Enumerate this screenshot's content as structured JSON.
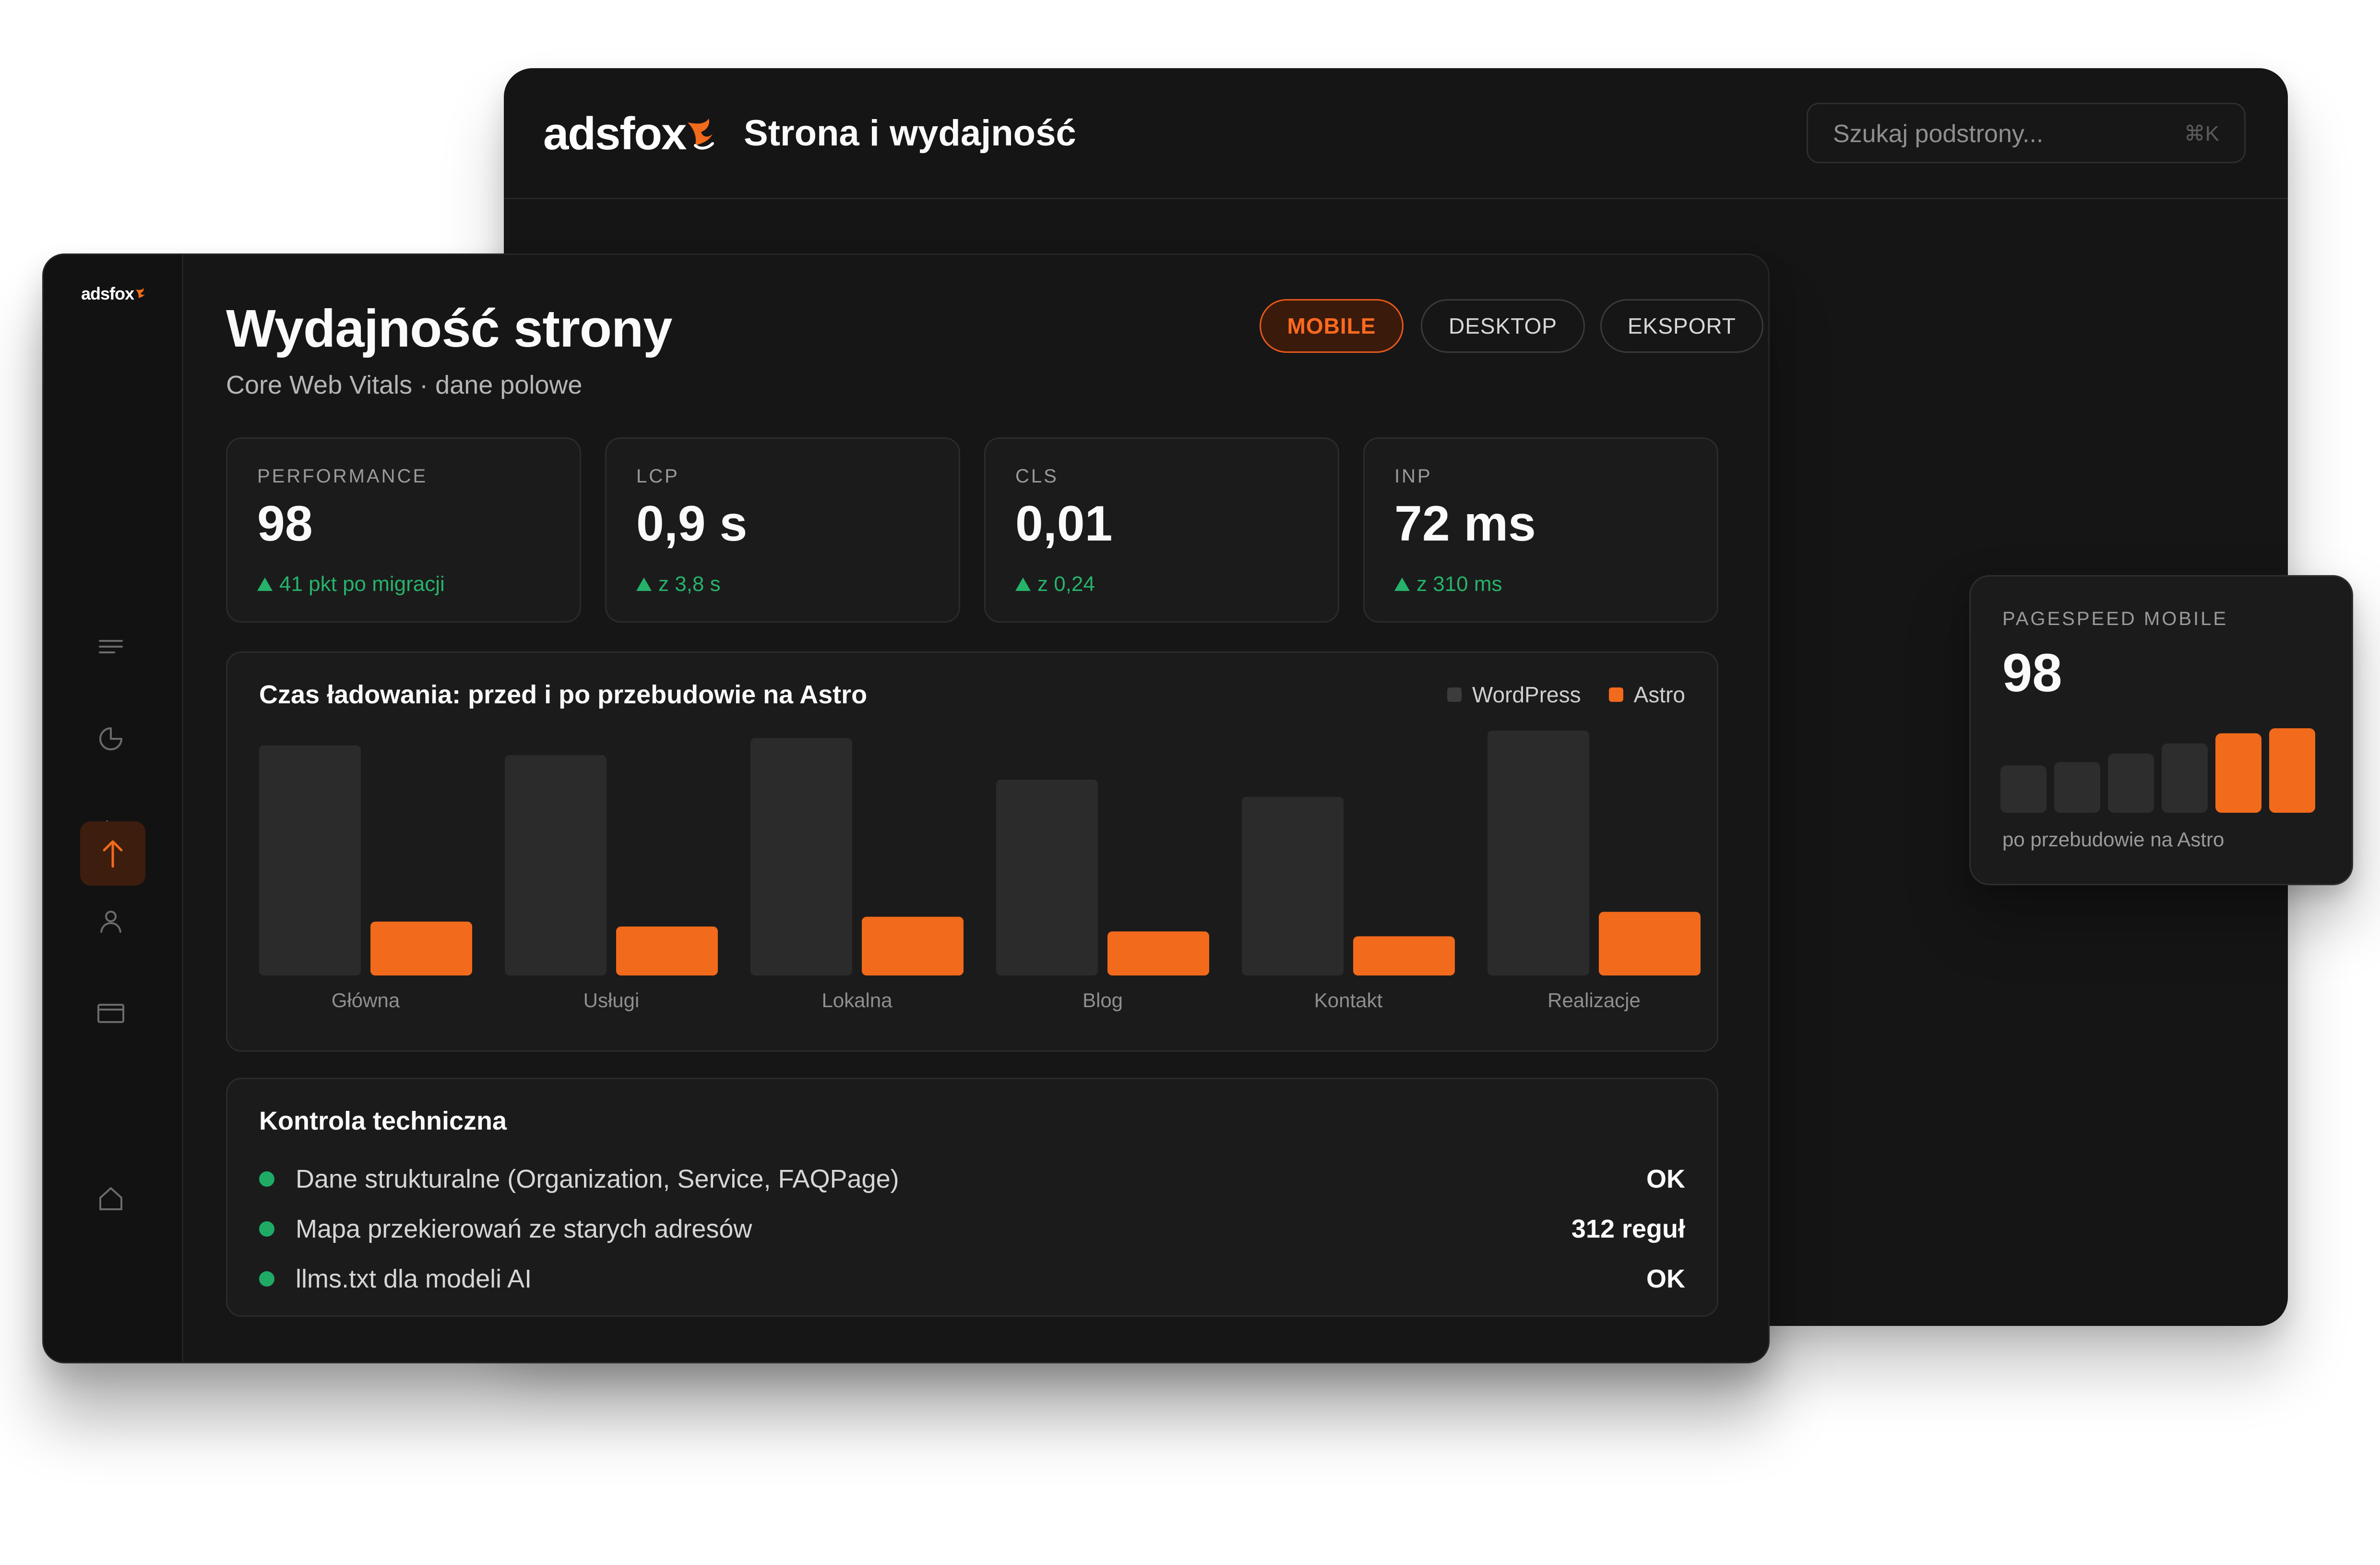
{
  "brand": {
    "logo": "adsfox"
  },
  "back_window": {
    "title": "Strona i wydajność",
    "search": {
      "placeholder": "Szukaj podstrony...",
      "shortcut": "⌘K"
    }
  },
  "sidebar": {
    "icons": [
      "menu-icon",
      "pie-chart-icon",
      "bar-chart-icon",
      "user-icon",
      "browser-window-icon",
      "arrow-up-icon",
      "home-icon"
    ],
    "active_icon": "arrow-up-icon"
  },
  "page": {
    "title": "Wydajność strony",
    "subtitle": "Core Web Vitals · dane polowe"
  },
  "tabs": [
    {
      "label": "MOBILE",
      "active": true
    },
    {
      "label": "DESKTOP",
      "active": false
    },
    {
      "label": "EKSPORT",
      "active": false
    }
  ],
  "kpis": [
    {
      "label": "PERFORMANCE",
      "value": "98",
      "delta": "41 pkt po migracji"
    },
    {
      "label": "LCP",
      "value": "0,9 s",
      "delta": "z 3,8 s"
    },
    {
      "label": "CLS",
      "value": "0,01",
      "delta": "z 0,24"
    },
    {
      "label": "INP",
      "value": "72 ms",
      "delta": "z 310 ms"
    }
  ],
  "chart_data": {
    "type": "bar",
    "title": "Czas ładowania: przed i po przebudowie na Astro",
    "categories": [
      "Główna",
      "Usługi",
      "Lokalna",
      "Blog",
      "Kontakt",
      "Realizacje"
    ],
    "series": [
      {
        "name": "WordPress",
        "values": [
          0.94,
          0.9,
          0.97,
          0.8,
          0.73,
          1.0
        ]
      },
      {
        "name": "Astro",
        "values": [
          0.22,
          0.2,
          0.24,
          0.18,
          0.16,
          0.26
        ]
      }
    ],
    "ylim": [
      0,
      1
    ],
    "grid": false,
    "legend": "top-right",
    "colors": {
      "WordPress": "#2b2b2b",
      "Astro": "#f26a1b"
    },
    "legend_colors": {
      "WordPress": "#3c3c3c",
      "Astro": "#f26a1b"
    }
  },
  "tech": {
    "title": "Kontrola techniczna",
    "rows": [
      {
        "label": "Dane strukturalne (Organization, Service, FAQPage)",
        "value": "OK"
      },
      {
        "label": "Mapa przekierowań ze starych adresów",
        "value": "312 reguł"
      },
      {
        "label": "llms.txt dla modeli AI",
        "value": "OK"
      }
    ],
    "status_color": "#1faa66"
  },
  "pagespeed_card": {
    "label": "PAGESPEED MOBILE",
    "value": "98",
    "caption": "po przebudowie na Astro",
    "bars": [
      {
        "level": 0.56,
        "highlight": false
      },
      {
        "level": 0.6,
        "highlight": false
      },
      {
        "level": 0.7,
        "highlight": false
      },
      {
        "level": 0.82,
        "highlight": false
      },
      {
        "level": 0.94,
        "highlight": true
      },
      {
        "level": 1.0,
        "highlight": true
      }
    ]
  },
  "colors": {
    "accent": "#f26a1b",
    "positive": "#27b26b",
    "background": "#161616"
  }
}
